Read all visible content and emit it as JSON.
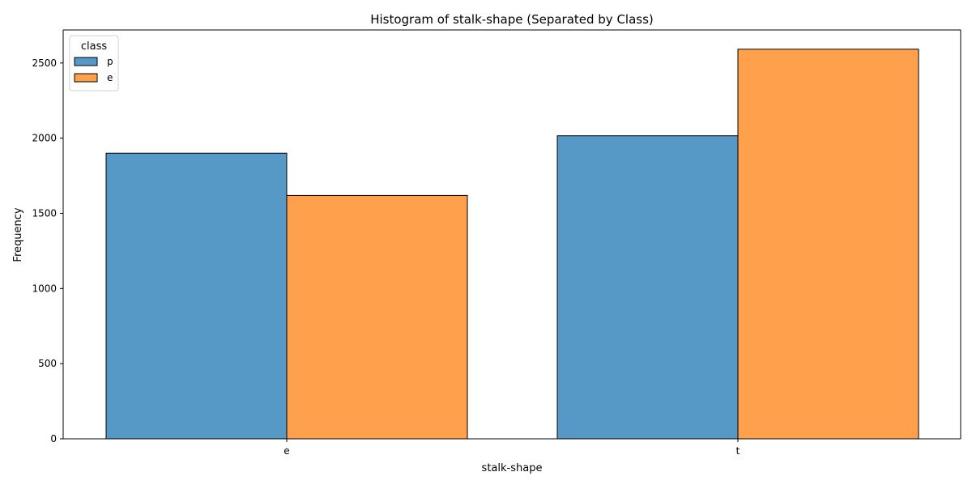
{
  "chart_data": {
    "type": "bar",
    "title": "Histogram of stalk-shape (Separated by Class)",
    "xlabel": "stalk-shape",
    "ylabel": "Frequency",
    "categories": [
      "e",
      "t"
    ],
    "series": [
      {
        "name": "p",
        "values": [
          1900,
          2016
        ],
        "color": "#5698c6"
      },
      {
        "name": "e",
        "values": [
          1619,
          2592
        ],
        "color": "#ffa04c"
      }
    ],
    "ylim": [
      0,
      2720
    ],
    "yticks": [
      0,
      500,
      1000,
      1500,
      2000,
      2500
    ],
    "grid": false,
    "legend": {
      "title": "class",
      "placement": "top-left"
    },
    "bar_edge_color": "#000000"
  }
}
